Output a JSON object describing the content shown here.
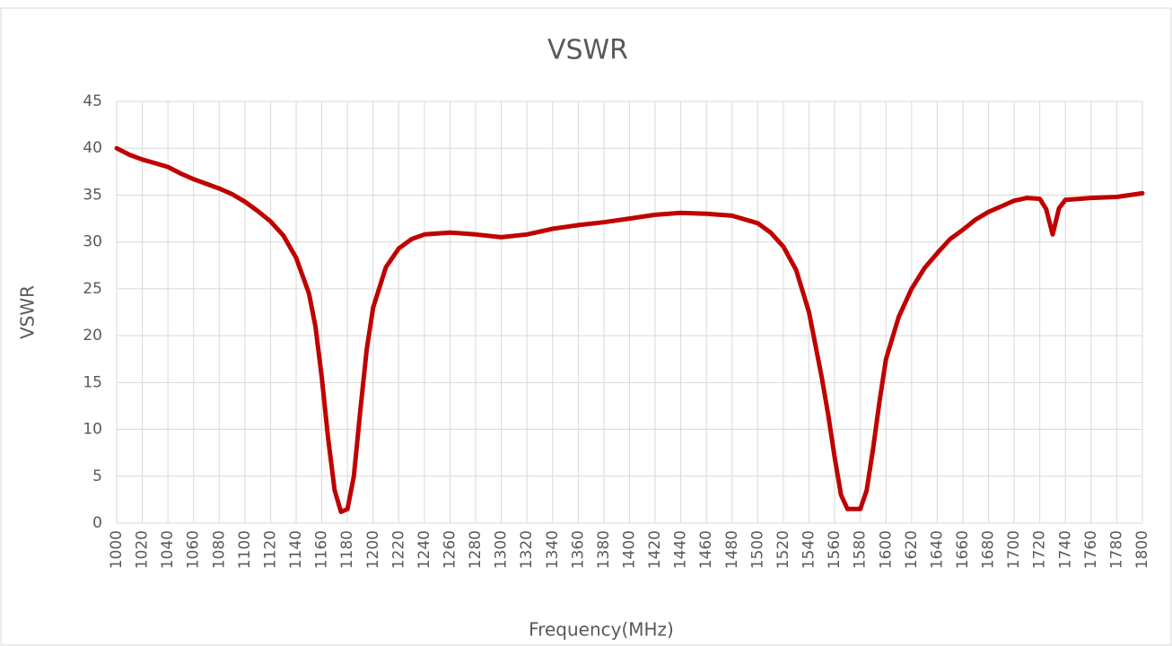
{
  "chart_data": {
    "type": "line",
    "title": "VSWR",
    "xlabel": "Frequency(MHz)",
    "ylabel": "VSWR",
    "x": [
      1000,
      1010,
      1020,
      1030,
      1040,
      1050,
      1060,
      1070,
      1080,
      1090,
      1100,
      1110,
      1120,
      1130,
      1140,
      1150,
      1155,
      1160,
      1165,
      1170,
      1175,
      1180,
      1185,
      1190,
      1195,
      1200,
      1210,
      1220,
      1230,
      1240,
      1260,
      1280,
      1300,
      1320,
      1340,
      1360,
      1380,
      1400,
      1420,
      1440,
      1460,
      1480,
      1500,
      1510,
      1520,
      1530,
      1540,
      1550,
      1555,
      1560,
      1565,
      1570,
      1580,
      1585,
      1590,
      1595,
      1600,
      1610,
      1620,
      1630,
      1640,
      1650,
      1660,
      1670,
      1680,
      1690,
      1700,
      1710,
      1720,
      1725,
      1730,
      1735,
      1740,
      1760,
      1780,
      1800
    ],
    "series": [
      {
        "name": "VSWR",
        "color": "#c00000",
        "values": [
          40,
          39.3,
          38.8,
          38.4,
          38.0,
          37.3,
          36.7,
          36.2,
          35.7,
          35.1,
          34.3,
          33.3,
          32.2,
          30.7,
          28.3,
          24.5,
          21,
          15.5,
          9,
          3.5,
          1.2,
          1.5,
          5,
          12,
          18.5,
          23,
          27.3,
          29.3,
          30.3,
          30.8,
          31.0,
          30.8,
          30.5,
          30.8,
          31.4,
          31.8,
          32.1,
          32.5,
          32.9,
          33.1,
          33.0,
          32.8,
          32.0,
          31.0,
          29.5,
          27.0,
          22.5,
          15.5,
          11.5,
          7,
          3,
          1.5,
          1.5,
          3.5,
          8,
          13,
          17.5,
          22,
          25,
          27.2,
          28.8,
          30.3,
          31.3,
          32.4,
          33.2,
          33.8,
          34.4,
          34.7,
          34.6,
          33.5,
          30.8,
          33.6,
          34.5,
          34.7,
          34.8,
          35.2
        ]
      }
    ],
    "xlim": [
      1000,
      1800
    ],
    "xticks": [
      1000,
      1020,
      1040,
      1060,
      1080,
      1100,
      1120,
      1140,
      1160,
      1180,
      1200,
      1220,
      1240,
      1260,
      1280,
      1300,
      1320,
      1340,
      1360,
      1380,
      1400,
      1420,
      1440,
      1460,
      1480,
      1500,
      1520,
      1540,
      1560,
      1580,
      1600,
      1620,
      1640,
      1660,
      1680,
      1700,
      1720,
      1740,
      1760,
      1780,
      1800
    ],
    "ylim": [
      0,
      45
    ],
    "yticks": [
      0,
      5,
      10,
      15,
      20,
      25,
      30,
      35,
      40,
      45
    ],
    "grid": true
  }
}
